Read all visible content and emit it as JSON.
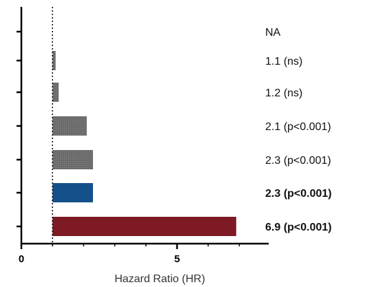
{
  "chart_data": {
    "type": "bar",
    "orientation": "horizontal",
    "xlabel": "Hazard Ratio (HR)",
    "xlim": [
      0,
      8
    ],
    "x_ticks": [
      0,
      5
    ],
    "reference_line": 1,
    "bars": [
      {
        "value": null,
        "annotation": "NA",
        "color": "#ffffff",
        "bold": false
      },
      {
        "value": 1.1,
        "annotation": "1.1 (ns)",
        "color": "#6b6b6b",
        "bold": false
      },
      {
        "value": 1.2,
        "annotation": "1.2 (ns)",
        "color": "#6b6b6b",
        "bold": false
      },
      {
        "value": 2.1,
        "annotation": "2.1 (p<0.001)",
        "color": "#6b6b6b",
        "bold": false
      },
      {
        "value": 2.3,
        "annotation": "2.3 (p<0.001)",
        "color": "#6b6b6b",
        "bold": false
      },
      {
        "value": 2.3,
        "annotation": "2.3 (p<0.001)",
        "color": "#14508a",
        "bold": true
      },
      {
        "value": 6.9,
        "annotation": "6.9 (p<0.001)",
        "color": "#7d1a24",
        "bold": true
      }
    ],
    "grid": false,
    "legend": "none"
  }
}
